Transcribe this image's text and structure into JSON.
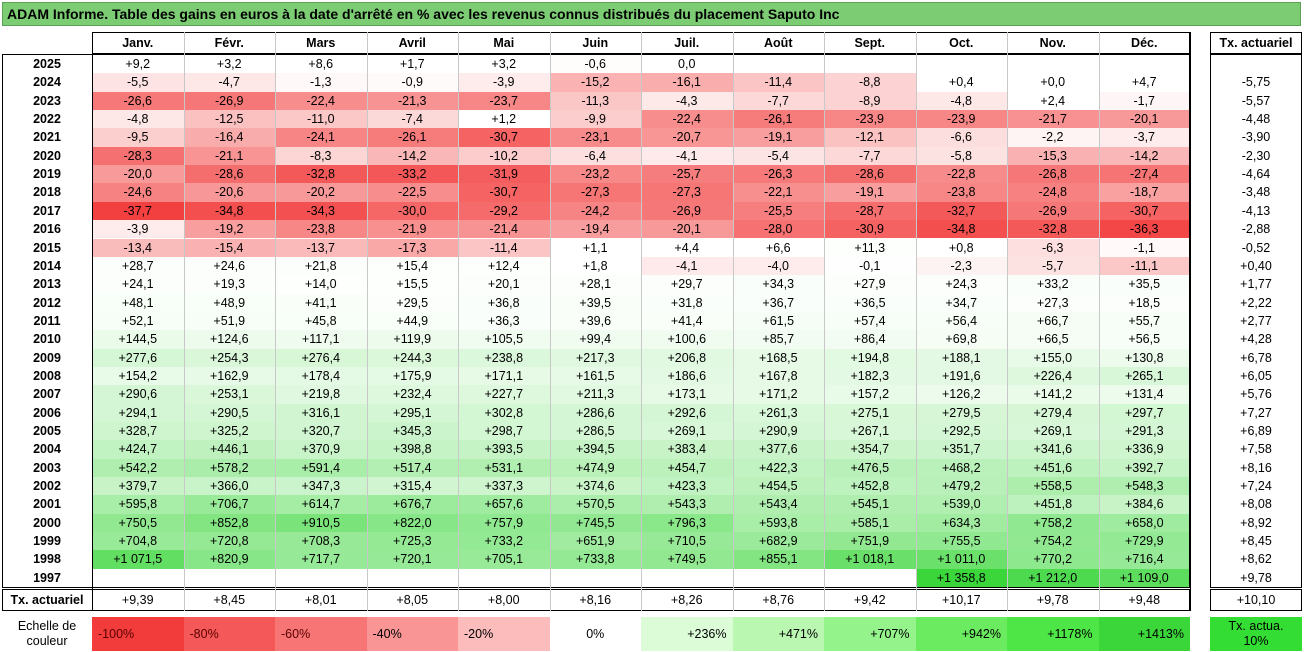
{
  "title": "ADAM Informe. Table des gains en euros à la date d'arrêté en % avec les revenus connus distribués du placement Saputo Inc",
  "months": [
    "Janv.",
    "Févr.",
    "Mars",
    "Avril",
    "Mai",
    "Juin",
    "Juil.",
    "Août",
    "Sept.",
    "Oct.",
    "Nov.",
    "Déc."
  ],
  "rate_header": "Tx. actuariel",
  "rows": [
    {
      "year": "2025",
      "values": [
        "+9,2",
        "+3,2",
        "+8,6",
        "+1,7",
        "+3,2",
        "-0,6",
        "0,0",
        "",
        "",
        "",
        "",
        ""
      ],
      "rate": ""
    },
    {
      "year": "2024",
      "values": [
        "-5,5",
        "-4,7",
        "-1,3",
        "-0,9",
        "-3,9",
        "-15,2",
        "-16,1",
        "-11,4",
        "-8,8",
        "+0,4",
        "+0,0",
        "+4,7"
      ],
      "rate": "-5,75"
    },
    {
      "year": "2023",
      "values": [
        "-26,6",
        "-26,9",
        "-22,4",
        "-21,3",
        "-23,7",
        "-11,3",
        "-4,3",
        "-7,7",
        "-8,9",
        "-4,8",
        "+2,4",
        "-1,7"
      ],
      "rate": "-5,57"
    },
    {
      "year": "2022",
      "values": [
        "-4,8",
        "-12,5",
        "-11,0",
        "-7,4",
        "+1,2",
        "-9,9",
        "-22,4",
        "-26,1",
        "-23,9",
        "-23,9",
        "-21,7",
        "-20,1"
      ],
      "rate": "-4,48"
    },
    {
      "year": "2021",
      "values": [
        "-9,5",
        "-16,4",
        "-24,1",
        "-26,1",
        "-30,7",
        "-23,1",
        "-20,7",
        "-19,1",
        "-12,1",
        "-6,6",
        "-2,2",
        "-3,7"
      ],
      "rate": "-3,90"
    },
    {
      "year": "2020",
      "values": [
        "-28,3",
        "-21,1",
        "-8,3",
        "-14,2",
        "-10,2",
        "-6,4",
        "-4,1",
        "-5,4",
        "-7,7",
        "-5,8",
        "-15,3",
        "-14,2"
      ],
      "rate": "-2,30"
    },
    {
      "year": "2019",
      "values": [
        "-20,0",
        "-28,6",
        "-32,8",
        "-33,2",
        "-31,9",
        "-23,2",
        "-25,7",
        "-26,3",
        "-28,6",
        "-22,8",
        "-26,8",
        "-27,4"
      ],
      "rate": "-4,64"
    },
    {
      "year": "2018",
      "values": [
        "-24,6",
        "-20,6",
        "-20,2",
        "-22,5",
        "-30,7",
        "-27,3",
        "-27,3",
        "-22,1",
        "-19,1",
        "-23,8",
        "-24,8",
        "-18,7"
      ],
      "rate": "-3,48"
    },
    {
      "year": "2017",
      "values": [
        "-37,7",
        "-34,8",
        "-34,3",
        "-30,0",
        "-29,2",
        "-24,2",
        "-26,9",
        "-25,5",
        "-28,7",
        "-32,7",
        "-26,9",
        "-30,7"
      ],
      "rate": "-4,13"
    },
    {
      "year": "2016",
      "values": [
        "-3,9",
        "-19,2",
        "-23,8",
        "-21,9",
        "-21,4",
        "-19,4",
        "-20,1",
        "-28,0",
        "-30,9",
        "-34,8",
        "-32,8",
        "-36,3"
      ],
      "rate": "-2,88"
    },
    {
      "year": "2015",
      "values": [
        "-13,4",
        "-15,4",
        "-13,7",
        "-17,3",
        "-11,4",
        "+1,1",
        "+4,4",
        "+6,6",
        "+11,3",
        "+0,8",
        "-6,3",
        "-1,1"
      ],
      "rate": "-0,52"
    },
    {
      "year": "2014",
      "values": [
        "+28,7",
        "+24,6",
        "+21,8",
        "+15,4",
        "+12,4",
        "+1,8",
        "-4,1",
        "-4,0",
        "-0,1",
        "-2,3",
        "-5,7",
        "-11,1"
      ],
      "rate": "+0,40"
    },
    {
      "year": "2013",
      "values": [
        "+24,1",
        "+19,3",
        "+14,0",
        "+15,5",
        "+20,1",
        "+28,1",
        "+29,7",
        "+34,3",
        "+27,9",
        "+24,3",
        "+33,2",
        "+35,5"
      ],
      "rate": "+1,77"
    },
    {
      "year": "2012",
      "values": [
        "+48,1",
        "+48,9",
        "+41,1",
        "+29,5",
        "+36,8",
        "+39,5",
        "+31,8",
        "+36,7",
        "+36,5",
        "+34,7",
        "+27,3",
        "+18,5"
      ],
      "rate": "+2,22"
    },
    {
      "year": "2011",
      "values": [
        "+52,1",
        "+51,9",
        "+45,8",
        "+44,9",
        "+36,3",
        "+39,6",
        "+41,4",
        "+61,5",
        "+57,4",
        "+56,4",
        "+66,7",
        "+55,7"
      ],
      "rate": "+2,77"
    },
    {
      "year": "2010",
      "values": [
        "+144,5",
        "+124,6",
        "+117,1",
        "+119,9",
        "+105,5",
        "+99,4",
        "+100,6",
        "+85,7",
        "+86,4",
        "+69,8",
        "+66,5",
        "+56,5"
      ],
      "rate": "+4,28"
    },
    {
      "year": "2009",
      "values": [
        "+277,6",
        "+254,3",
        "+276,4",
        "+244,3",
        "+238,8",
        "+217,3",
        "+206,8",
        "+168,5",
        "+194,8",
        "+188,1",
        "+155,0",
        "+130,8"
      ],
      "rate": "+6,78"
    },
    {
      "year": "2008",
      "values": [
        "+154,2",
        "+162,9",
        "+178,4",
        "+175,9",
        "+171,1",
        "+161,5",
        "+186,6",
        "+167,8",
        "+182,3",
        "+191,6",
        "+226,4",
        "+265,1"
      ],
      "rate": "+6,05"
    },
    {
      "year": "2007",
      "values": [
        "+290,6",
        "+253,1",
        "+219,8",
        "+232,4",
        "+227,7",
        "+211,3",
        "+173,1",
        "+171,2",
        "+157,2",
        "+126,2",
        "+141,2",
        "+131,4"
      ],
      "rate": "+5,76"
    },
    {
      "year": "2006",
      "values": [
        "+294,1",
        "+290,5",
        "+316,1",
        "+295,1",
        "+302,8",
        "+286,6",
        "+292,6",
        "+261,3",
        "+275,1",
        "+279,5",
        "+279,4",
        "+297,7"
      ],
      "rate": "+7,27"
    },
    {
      "year": "2005",
      "values": [
        "+328,7",
        "+325,2",
        "+320,7",
        "+345,3",
        "+298,7",
        "+286,5",
        "+269,1",
        "+290,9",
        "+267,1",
        "+292,5",
        "+269,1",
        "+291,3"
      ],
      "rate": "+6,89"
    },
    {
      "year": "2004",
      "values": [
        "+424,7",
        "+446,1",
        "+370,9",
        "+398,8",
        "+393,5",
        "+394,5",
        "+383,4",
        "+377,6",
        "+354,7",
        "+351,7",
        "+341,6",
        "+336,9"
      ],
      "rate": "+7,58"
    },
    {
      "year": "2003",
      "values": [
        "+542,2",
        "+578,2",
        "+591,4",
        "+517,4",
        "+531,1",
        "+474,9",
        "+454,7",
        "+422,3",
        "+476,5",
        "+468,2",
        "+451,6",
        "+392,7"
      ],
      "rate": "+8,16"
    },
    {
      "year": "2002",
      "values": [
        "+379,7",
        "+366,0",
        "+347,3",
        "+315,4",
        "+337,3",
        "+374,6",
        "+423,3",
        "+454,5",
        "+452,8",
        "+479,2",
        "+558,5",
        "+548,3"
      ],
      "rate": "+7,24"
    },
    {
      "year": "2001",
      "values": [
        "+595,8",
        "+706,7",
        "+614,7",
        "+676,7",
        "+657,6",
        "+570,5",
        "+543,3",
        "+543,4",
        "+545,1",
        "+539,0",
        "+451,8",
        "+384,6"
      ],
      "rate": "+8,08"
    },
    {
      "year": "2000",
      "values": [
        "+750,5",
        "+852,8",
        "+910,5",
        "+822,0",
        "+757,9",
        "+745,5",
        "+796,3",
        "+593,8",
        "+585,1",
        "+634,3",
        "+758,2",
        "+658,0"
      ],
      "rate": "+8,92"
    },
    {
      "year": "1999",
      "values": [
        "+704,8",
        "+720,8",
        "+708,3",
        "+725,3",
        "+733,2",
        "+651,9",
        "+710,5",
        "+682,9",
        "+751,9",
        "+755,5",
        "+754,2",
        "+729,9"
      ],
      "rate": "+8,45"
    },
    {
      "year": "1998",
      "values": [
        "+1 071,5",
        "+820,9",
        "+717,7",
        "+720,1",
        "+705,1",
        "+733,8",
        "+749,5",
        "+855,1",
        "+1 018,1",
        "+1 011,0",
        "+770,2",
        "+716,4"
      ],
      "rate": "+8,62"
    },
    {
      "year": "1997",
      "values": [
        "",
        "",
        "",
        "",
        "",
        "",
        "",
        "",
        "",
        "+1 358,8",
        "+1 212,0",
        "+1 109,0"
      ],
      "rate": "+9,78"
    }
  ],
  "footer": {
    "label": "Tx. actuariel",
    "values": [
      "+9,39",
      "+8,45",
      "+8,01",
      "+8,05",
      "+8,00",
      "+8,16",
      "+8,26",
      "+8,76",
      "+9,42",
      "+10,17",
      "+9,78",
      "+9,48"
    ],
    "rate": "+10,10"
  },
  "scale": {
    "label": "Echelle de couleur",
    "items": [
      {
        "text": "-100%",
        "color": "#f23c3c",
        "align": "left"
      },
      {
        "text": "-80%",
        "color": "#f55858",
        "align": "left"
      },
      {
        "text": "-60%",
        "color": "#f77575",
        "align": "left"
      },
      {
        "text": "-40%",
        "color": "#f99595",
        "align": "left"
      },
      {
        "text": "-20%",
        "color": "#fcbcbc",
        "align": "left"
      },
      {
        "text": "0%",
        "color": "#ffffff",
        "align": "center"
      },
      {
        "text": "+236%",
        "color": "#dcfcd8",
        "align": "right"
      },
      {
        "text": "+471%",
        "color": "#baf8b2",
        "align": "right"
      },
      {
        "text": "+707%",
        "color": "#94f38a",
        "align": "right"
      },
      {
        "text": "+942%",
        "color": "#6bec60",
        "align": "right"
      },
      {
        "text": "+1178%",
        "color": "#4ee646",
        "align": "right"
      },
      {
        "text": "+1413%",
        "color": "#3ad63a",
        "align": "right"
      }
    ],
    "rate_label": "Tx. actua. 10%",
    "rate_color": "#33dd33"
  }
}
